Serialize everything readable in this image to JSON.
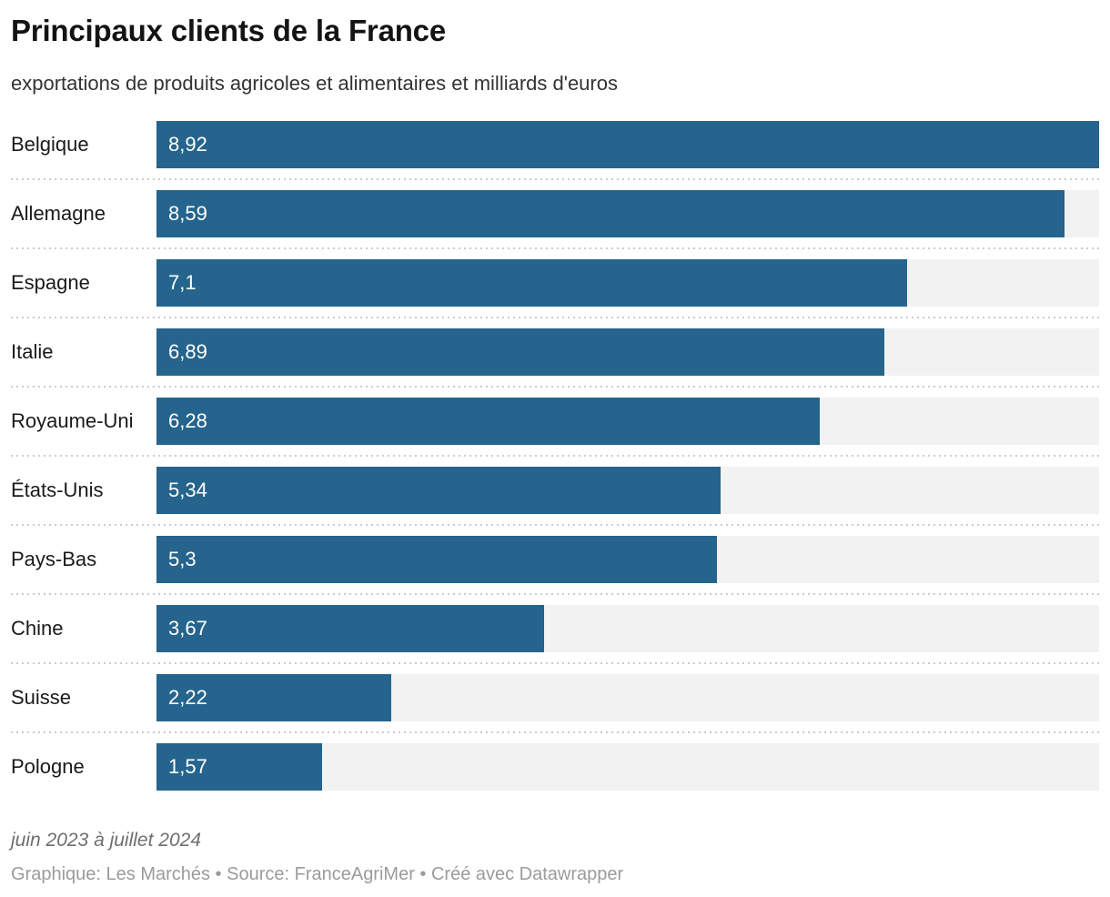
{
  "header": {
    "title": "Principaux clients de la France",
    "subtitle": "exportations de produits agricoles et alimentaires et milliards d'euros"
  },
  "chart_data": {
    "type": "bar",
    "orientation": "horizontal",
    "title": "Principaux clients de la France",
    "subtitle": "exportations de produits agricoles et alimentaires et milliards d'euros",
    "categories": [
      "Belgique",
      "Allemagne",
      "Espagne",
      "Italie",
      "Royaume-Uni",
      "États-Unis",
      "Pays-Bas",
      "Chine",
      "Suisse",
      "Pologne"
    ],
    "values": [
      8.92,
      8.59,
      7.1,
      6.89,
      6.28,
      5.34,
      5.3,
      3.67,
      2.22,
      1.57
    ],
    "value_labels": [
      "8,92",
      "8,59",
      "7,1",
      "6,89",
      "6,28",
      "5,34",
      "5,3",
      "3,67",
      "2,22",
      "1,57"
    ],
    "xlim": [
      0,
      8.92
    ],
    "grid": false,
    "legend": false,
    "bar_color": "#25648c",
    "track_color": "#f2f2f2",
    "value_label_color": "#ffffff",
    "separator_color": "#cccccc"
  },
  "footer": {
    "note": "juin 2023 à juillet 2024",
    "byline": "Graphique: Les Marchés • Source: FranceAgriMer • Créé avec Datawrapper"
  }
}
